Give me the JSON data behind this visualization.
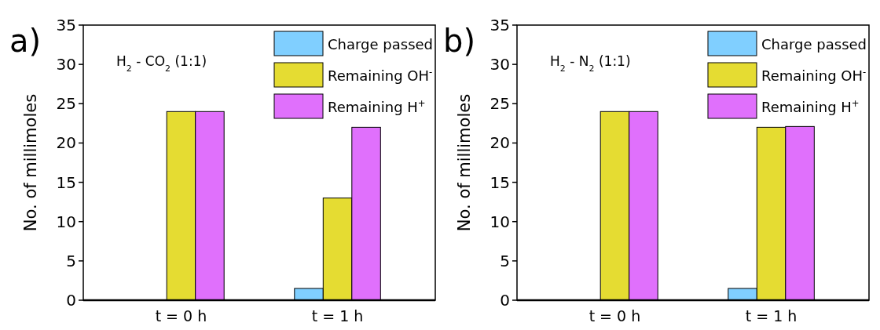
{
  "chart_data": [
    {
      "type": "bar",
      "title": "a)",
      "ylabel": "No. of millimoles",
      "annotations": [
        "H$_{2}$ - CO$_{2}$ (1:1)"
      ],
      "categories": [
        "t = 0 h",
        "t = 1 h"
      ],
      "ylim": [
        0,
        35
      ],
      "yticks": [
        0,
        5,
        10,
        15,
        20,
        25,
        30,
        35
      ],
      "legend": "top right",
      "series": [
        {
          "name": "Charge passed",
          "color": "#80cfff",
          "values": [
            0,
            1.5
          ]
        },
        {
          "name": "Remaining OH$^{-}$",
          "color": "#e5dc32",
          "values": [
            24,
            13
          ]
        },
        {
          "name": "Remaining H$^{+}$",
          "color": "#e070fc",
          "values": [
            24,
            22
          ]
        }
      ]
    },
    {
      "type": "bar",
      "title": "b)",
      "ylabel": "No. of millimoles",
      "annotations": [
        "H$_{2}$ - N$_{2}$ (1:1)"
      ],
      "categories": [
        "t = 0 h",
        "t = 1 h"
      ],
      "ylim": [
        0,
        35
      ],
      "yticks": [
        0,
        5,
        10,
        15,
        20,
        25,
        30,
        35
      ],
      "legend": "top right",
      "series": [
        {
          "name": "Charge passed",
          "color": "#80cfff",
          "values": [
            0,
            1.5
          ]
        },
        {
          "name": "Remaining OH$^{-}$",
          "color": "#e5dc32",
          "values": [
            24,
            22
          ]
        },
        {
          "name": "Remaining H$^{+}$",
          "color": "#e070fc",
          "values": [
            24,
            22.1
          ]
        }
      ]
    }
  ]
}
